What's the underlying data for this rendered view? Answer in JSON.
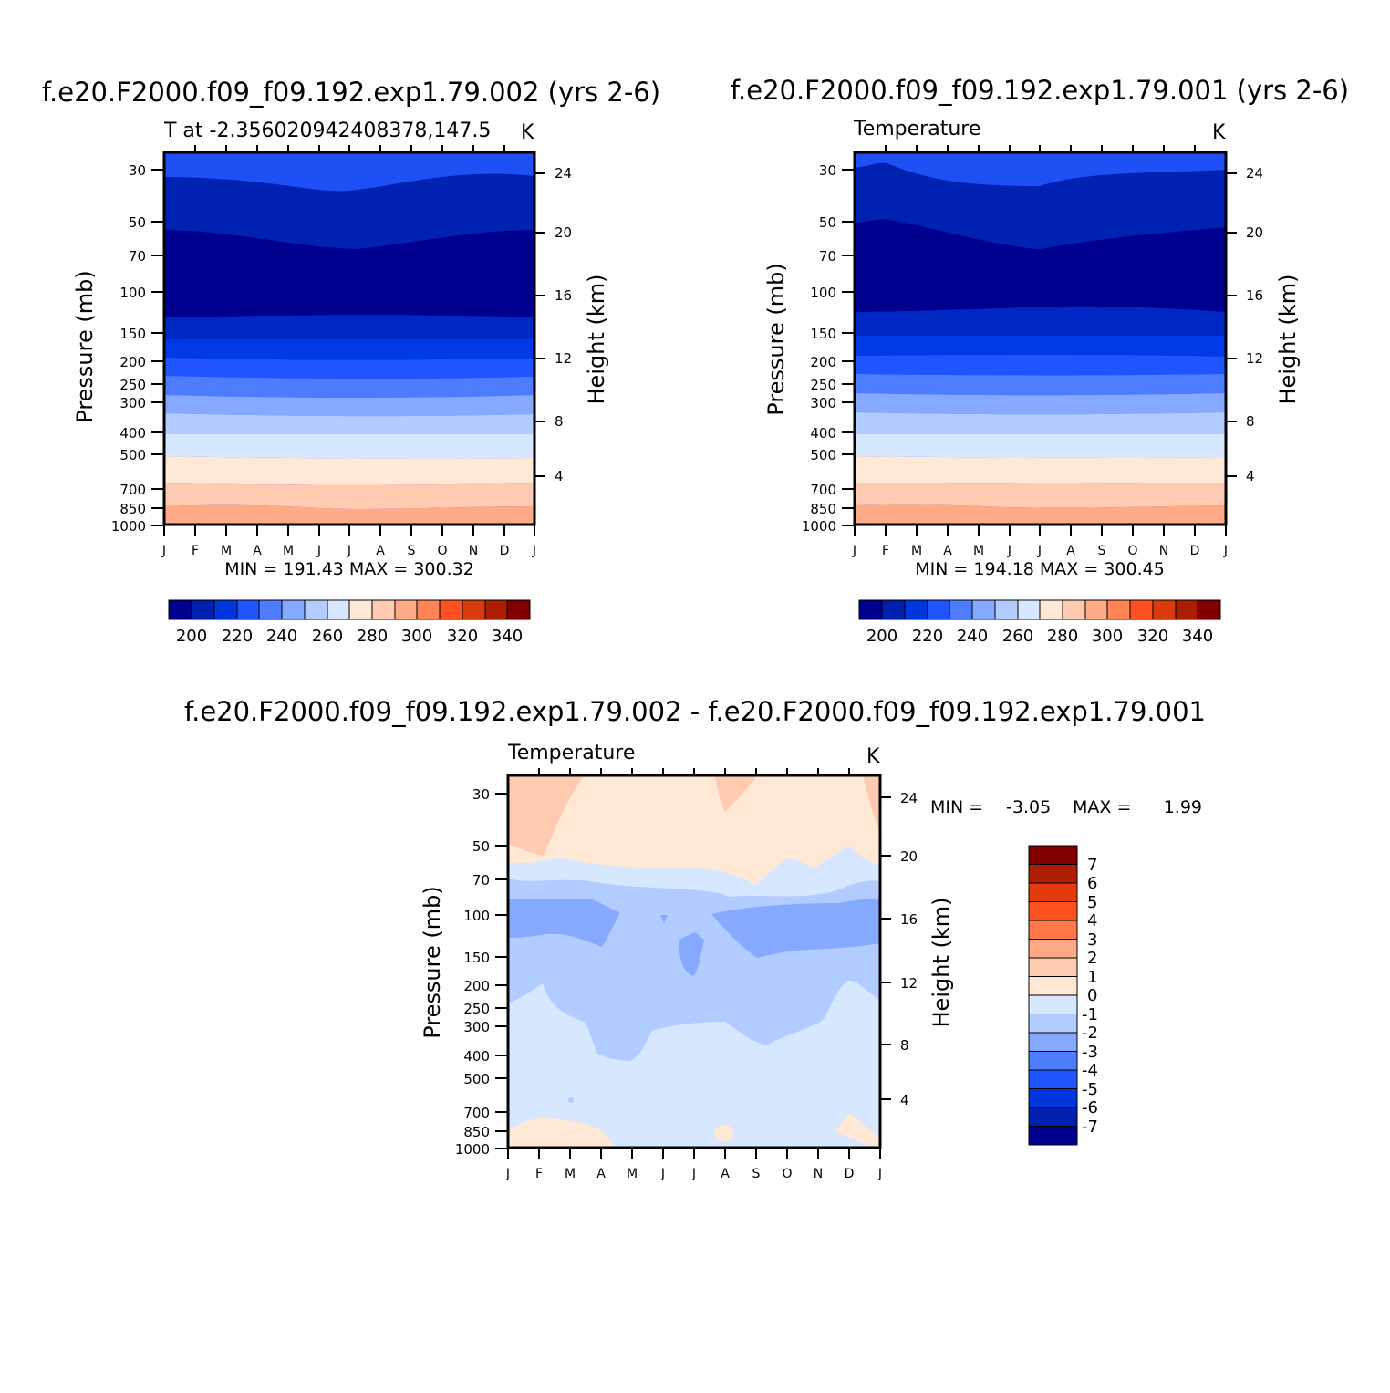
{
  "chart_data": [
    {
      "type": "heatmap",
      "title": "f.e20.F2000.f09_f09.192.exp1.79.002 (yrs 2-6)",
      "subtitle_left": "T at -2.356020942408378,147.5",
      "subtitle_right": "K",
      "ylabel": "Pressure (mb)",
      "ylabel_right": "Height (km)",
      "x_ticks": [
        "J",
        "F",
        "M",
        "A",
        "M",
        "J",
        "J",
        "A",
        "S",
        "O",
        "N",
        "D",
        "J"
      ],
      "y_ticks": [
        "30",
        "50",
        "70",
        "100",
        "150",
        "200",
        "250",
        "300",
        "400",
        "500",
        "700",
        "850",
        "1000"
      ],
      "y_ticks_right": [
        "4",
        "8",
        "12",
        "16",
        "20",
        "24"
      ],
      "stats": "MIN = 191.43 MAX = 300.32",
      "colorbar_labels": [
        "200",
        "220",
        "240",
        "260",
        "280",
        "300",
        "320",
        "340"
      ]
    },
    {
      "type": "heatmap",
      "title": "f.e20.F2000.f09_f09.192.exp1.79.001 (yrs 2-6)",
      "subtitle_left": "Temperature",
      "subtitle_right": "K",
      "ylabel": "Pressure (mb)",
      "ylabel_right": "Height (km)",
      "x_ticks": [
        "J",
        "F",
        "M",
        "A",
        "M",
        "J",
        "J",
        "A",
        "S",
        "O",
        "N",
        "D",
        "J"
      ],
      "y_ticks": [
        "30",
        "50",
        "70",
        "100",
        "150",
        "200",
        "250",
        "300",
        "400",
        "500",
        "700",
        "850",
        "1000"
      ],
      "y_ticks_right": [
        "4",
        "8",
        "12",
        "16",
        "20",
        "24"
      ],
      "stats": "MIN = 194.18 MAX = 300.45",
      "colorbar_labels": [
        "200",
        "220",
        "240",
        "260",
        "280",
        "300",
        "320",
        "340"
      ]
    },
    {
      "type": "heatmap",
      "title": "f.e20.F2000.f09_f09.192.exp1.79.002 - f.e20.F2000.f09_f09.192.exp1.79.001",
      "subtitle_left": "Temperature",
      "subtitle_right": "K",
      "ylabel": "Pressure (mb)",
      "ylabel_right": "Height (km)",
      "x_ticks": [
        "J",
        "F",
        "M",
        "A",
        "M",
        "J",
        "J",
        "A",
        "S",
        "O",
        "N",
        "D",
        "J"
      ],
      "y_ticks": [
        "30",
        "50",
        "70",
        "100",
        "150",
        "200",
        "250",
        "300",
        "400",
        "500",
        "700",
        "850",
        "1000"
      ],
      "y_ticks_right": [
        "4",
        "8",
        "12",
        "16",
        "20",
        "24"
      ],
      "stats_min_label": "MIN =",
      "stats_min": "-3.05",
      "stats_max_label": "MAX =",
      "stats_max": "1.99",
      "colorbar_labels": [
        "7",
        "6",
        "5",
        "4",
        "3",
        "2",
        "1",
        "0",
        "-1",
        "-2",
        "-3",
        "-4",
        "-5",
        "-6",
        "-7"
      ]
    }
  ],
  "palette_abs": [
    "#00008f",
    "#0020b0",
    "#0036dd",
    "#1f54ff",
    "#4e7cff",
    "#85a9ff",
    "#b3ccff",
    "#d7e7ff",
    "#ffe8d6",
    "#ffcbb0",
    "#ffaa86",
    "#ff8458",
    "#ff5021",
    "#d93b0c",
    "#ae1e05",
    "#820000"
  ],
  "palette_diff": [
    "#820000",
    "#ae1e05",
    "#e33b0f",
    "#ff5021",
    "#ff774a",
    "#ffaa86",
    "#ffcbb0",
    "#ffe8d6",
    "#d7e7ff",
    "#b3ccff",
    "#85a9ff",
    "#4e7cff",
    "#1f54ff",
    "#0036dd",
    "#0020b0",
    "#00008f"
  ]
}
